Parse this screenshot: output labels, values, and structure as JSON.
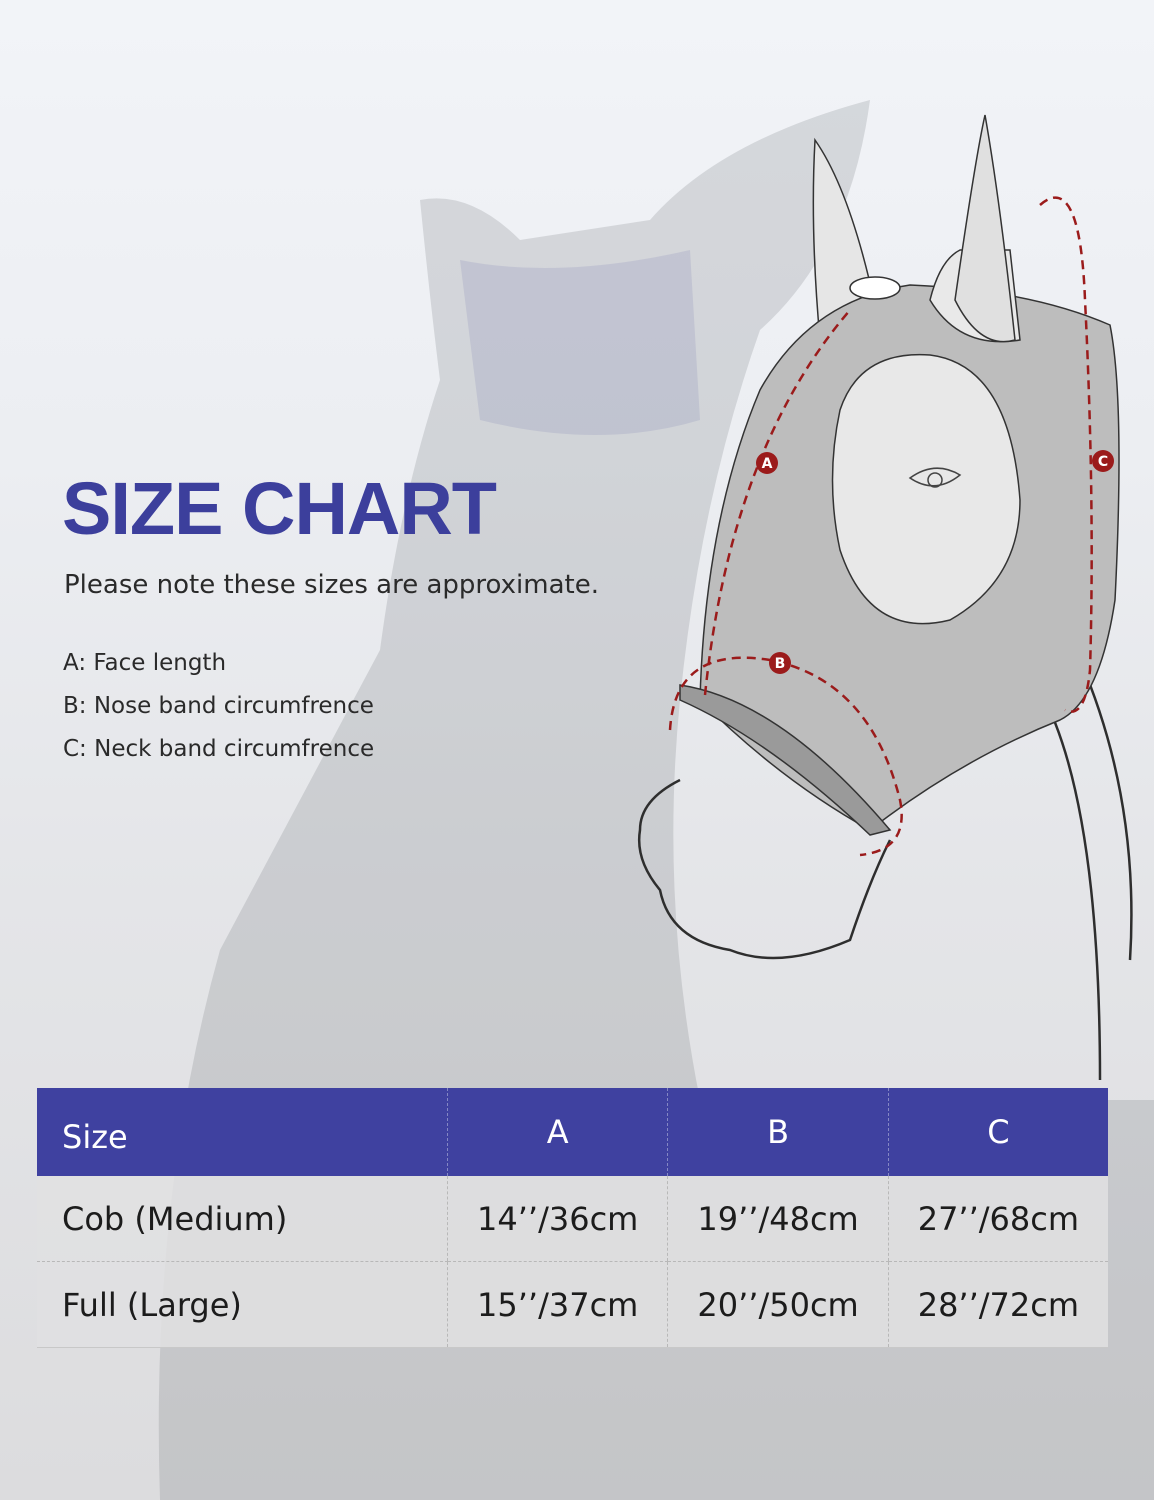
{
  "title": "SIZE CHART",
  "note": "Please note these sizes are approximate.",
  "legend": [
    "A: Face length",
    "B: Nose band circumfrence",
    "C: Neck band circumfrence"
  ],
  "diagram_markers": [
    "A",
    "B",
    "C"
  ],
  "colors": {
    "brand": "#3c3f9c",
    "table_header": "#3f41a0",
    "measure_line": "#9b1b1b"
  },
  "table": {
    "headers": [
      "Size",
      "A",
      "B",
      "C"
    ],
    "rows": [
      [
        "Cob (Medium)",
        "14’’/36cm",
        "19’’/48cm",
        "27’’/68cm"
      ],
      [
        "Full (Large)",
        "15’’/37cm",
        "20’’/50cm",
        "28’’/72cm"
      ]
    ]
  }
}
